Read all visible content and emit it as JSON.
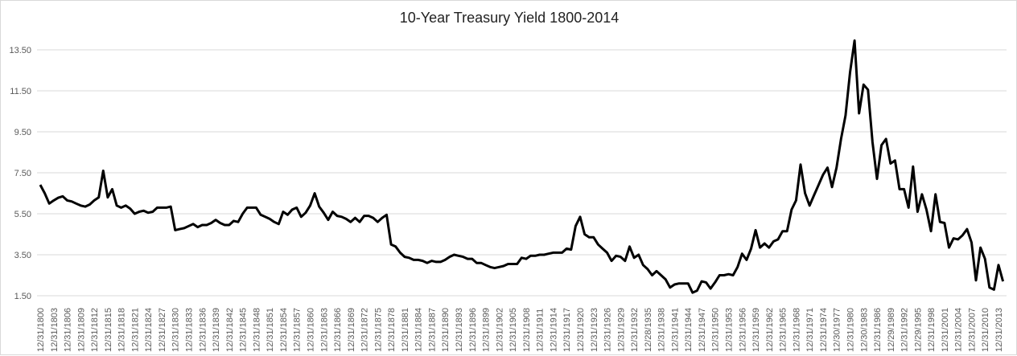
{
  "chart_data": {
    "type": "line",
    "title": "10-Year Treasury Yield 1800-2014",
    "xlabel": "",
    "ylabel": "",
    "ylim": [
      1.5,
      13.5
    ],
    "yticks": [
      "1.50",
      "3.50",
      "5.50",
      "7.50",
      "9.50",
      "11.50",
      "13.50"
    ],
    "grid": true,
    "legend": "none",
    "x_start_year": 1800,
    "xtick_labels": [
      "12/31/1800",
      "12/31/1803",
      "12/31/1806",
      "12/31/1809",
      "12/31/1812",
      "12/31/1815",
      "12/31/1818",
      "12/31/1821",
      "12/31/1824",
      "12/31/1827",
      "12/31/1830",
      "12/31/1833",
      "12/31/1836",
      "12/31/1839",
      "12/31/1842",
      "12/31/1845",
      "12/31/1848",
      "12/31/1851",
      "12/31/1854",
      "12/31/1857",
      "12/31/1860",
      "12/31/1863",
      "12/31/1866",
      "12/31/1869",
      "12/31/1872",
      "12/31/1875",
      "12/31/1878",
      "12/31/1881",
      "12/31/1884",
      "12/31/1887",
      "12/31/1890",
      "12/31/1893",
      "12/31/1896",
      "12/31/1899",
      "12/31/1902",
      "12/31/1905",
      "12/31/1908",
      "12/31/1911",
      "12/31/1914",
      "12/31/1917",
      "12/31/1920",
      "12/31/1923",
      "12/31/1926",
      "12/31/1929",
      "12/31/1932",
      "12/28/1935",
      "12/31/1938",
      "12/31/1941",
      "12/31/1944",
      "12/31/1947",
      "12/31/1950",
      "12/31/1953",
      "12/31/1956",
      "12/31/1959",
      "12/31/1962",
      "12/31/1965",
      "12/31/1968",
      "12/31/1971",
      "12/31/1974",
      "12/30/1977",
      "12/31/1980",
      "12/30/1983",
      "12/31/1986",
      "12/29/1989",
      "12/31/1992",
      "12/29/1995",
      "12/31/1998",
      "12/31/2001",
      "12/31/2004",
      "12/31/2007",
      "12/31/2010",
      "12/31/2013"
    ],
    "series": [
      {
        "name": "10-Year Treasury Yield",
        "color": "#000000",
        "values": [
          6.91,
          6.5,
          6.0,
          6.15,
          6.28,
          6.35,
          6.15,
          6.1,
          6.0,
          5.9,
          5.85,
          5.95,
          6.15,
          6.3,
          7.6,
          6.3,
          6.7,
          5.9,
          5.8,
          5.9,
          5.75,
          5.5,
          5.6,
          5.65,
          5.55,
          5.6,
          5.8,
          5.8,
          5.8,
          5.85,
          4.7,
          4.75,
          4.8,
          4.9,
          5.0,
          4.85,
          4.95,
          4.95,
          5.05,
          5.2,
          5.05,
          4.95,
          4.95,
          5.15,
          5.1,
          5.5,
          5.8,
          5.8,
          5.8,
          5.45,
          5.35,
          5.25,
          5.1,
          5.0,
          5.6,
          5.45,
          5.7,
          5.8,
          5.35,
          5.55,
          5.9,
          6.5,
          5.85,
          5.55,
          5.2,
          5.6,
          5.4,
          5.35,
          5.25,
          5.1,
          5.3,
          5.1,
          5.4,
          5.4,
          5.3,
          5.1,
          5.3,
          5.45,
          4.0,
          3.9,
          3.6,
          3.4,
          3.35,
          3.25,
          3.25,
          3.2,
          3.1,
          3.2,
          3.15,
          3.15,
          3.25,
          3.4,
          3.5,
          3.45,
          3.4,
          3.3,
          3.3,
          3.1,
          3.1,
          3.0,
          2.9,
          2.85,
          2.9,
          2.95,
          3.05,
          3.05,
          3.05,
          3.35,
          3.3,
          3.45,
          3.45,
          3.5,
          3.5,
          3.55,
          3.6,
          3.6,
          3.6,
          3.8,
          3.75,
          4.9,
          5.35,
          4.5,
          4.35,
          4.35,
          4.0,
          3.8,
          3.6,
          3.2,
          3.45,
          3.4,
          3.2,
          3.9,
          3.35,
          3.5,
          3.0,
          2.8,
          2.5,
          2.7,
          2.5,
          2.3,
          1.9,
          2.05,
          2.1,
          2.1,
          2.1,
          1.65,
          1.75,
          2.2,
          2.15,
          1.85,
          2.15,
          2.5,
          2.5,
          2.55,
          2.5,
          2.9,
          3.55,
          3.25,
          3.8,
          4.7,
          3.85,
          4.05,
          3.85,
          4.15,
          4.25,
          4.65,
          4.65,
          5.7,
          6.15,
          7.9,
          6.5,
          5.9,
          6.4,
          6.9,
          7.4,
          7.75,
          6.8,
          7.75,
          9.15,
          10.3,
          12.4,
          13.95,
          10.4,
          11.8,
          11.55,
          9.0,
          7.2,
          8.85,
          9.15,
          7.95,
          8.1,
          6.7,
          6.7,
          5.8,
          7.8,
          5.6,
          6.45,
          5.7,
          4.65,
          6.45,
          5.1,
          5.05,
          3.85,
          4.3,
          4.25,
          4.45,
          4.75,
          4.1,
          2.25,
          3.85,
          3.3,
          1.9,
          1.8,
          3.0,
          2.2
        ]
      }
    ]
  }
}
